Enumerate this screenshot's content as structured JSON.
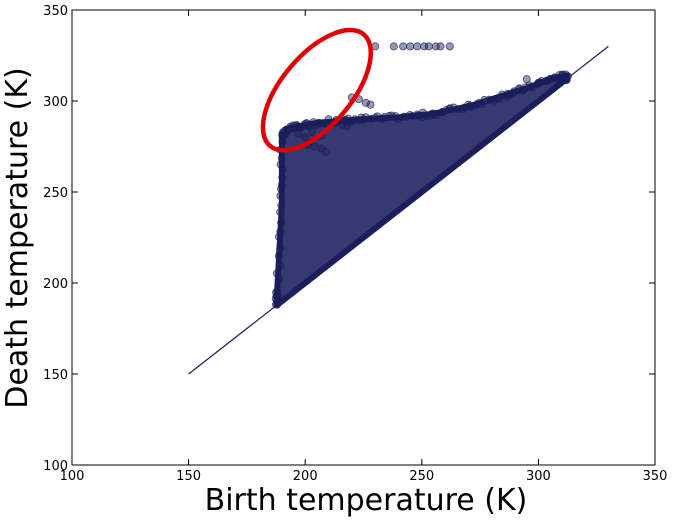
{
  "chart_data": {
    "type": "scatter",
    "xlabel": "Birth temperature (K)",
    "ylabel": "Death temperature (K)",
    "xlim": [
      100,
      350
    ],
    "ylim": [
      100,
      350
    ],
    "x_ticks": [
      100,
      150,
      200,
      250,
      300,
      350
    ],
    "y_ticks": [
      100,
      150,
      200,
      250,
      300,
      350
    ],
    "grid": false,
    "legend": "none",
    "colors": {
      "points": "#1b1f5c",
      "diagonal": "#1b1f5c",
      "highlight_ellipse": "#e00000"
    },
    "diagonal_line": {
      "x": [
        150,
        330
      ],
      "y": [
        150,
        330
      ]
    },
    "point_cloud_boundary": [
      [
        188,
        188
      ],
      [
        188,
        196
      ],
      [
        190,
        243
      ],
      [
        190,
        281
      ],
      [
        192,
        284
      ],
      [
        197,
        286
      ],
      [
        205,
        288
      ],
      [
        215,
        289
      ],
      [
        225,
        290
      ],
      [
        240,
        291
      ],
      [
        255,
        293
      ],
      [
        270,
        297
      ],
      [
        285,
        303
      ],
      [
        295,
        307
      ],
      [
        305,
        312
      ],
      [
        312,
        314
      ],
      [
        312,
        312
      ]
    ],
    "isolated_points": [
      [
        230,
        330
      ],
      [
        238,
        330
      ],
      [
        242,
        330
      ],
      [
        245,
        330
      ],
      [
        248,
        330
      ],
      [
        251,
        330
      ],
      [
        253,
        330
      ],
      [
        256,
        330
      ],
      [
        258,
        330
      ],
      [
        262,
        330
      ],
      [
        220,
        302
      ],
      [
        223,
        301
      ],
      [
        226,
        299
      ],
      [
        228,
        298
      ],
      [
        210,
        290
      ],
      [
        213,
        288
      ],
      [
        216,
        287
      ],
      [
        218,
        286
      ],
      [
        197,
        282
      ],
      [
        200,
        280
      ],
      [
        203,
        283
      ],
      [
        207,
        281
      ],
      [
        201,
        276
      ],
      [
        204,
        275
      ],
      [
        207,
        274
      ],
      [
        209,
        272
      ],
      [
        250,
        291
      ],
      [
        255,
        293
      ],
      [
        262,
        296
      ],
      [
        270,
        298
      ],
      [
        287,
        304
      ],
      [
        295,
        312
      ],
      [
        300,
        310
      ]
    ],
    "highlight": {
      "type": "ellipse",
      "center": [
        205,
        306
      ],
      "rx_data": 15,
      "ry_data": 40,
      "rotation_deg": 40
    }
  }
}
